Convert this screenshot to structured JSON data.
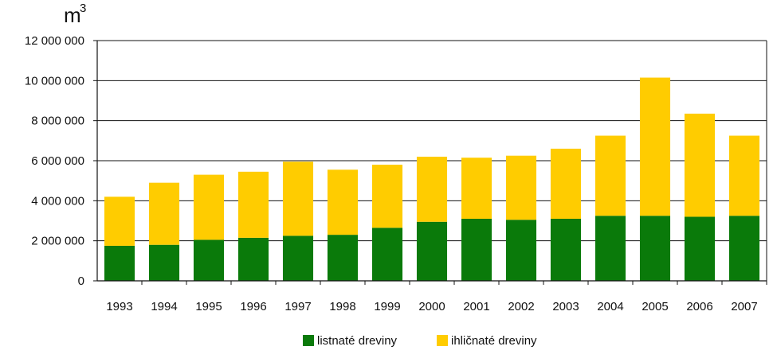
{
  "chart_data": {
    "type": "bar",
    "stacked": true,
    "title": "",
    "ylabel": "m",
    "ylabel_superscript": "3",
    "xlabel": "",
    "ylim": [
      0,
      12000000
    ],
    "yticks": [
      0,
      2000000,
      4000000,
      6000000,
      8000000,
      10000000,
      12000000
    ],
    "ytick_labels": [
      "0",
      "2 000 000",
      "4 000 000",
      "6 000 000",
      "8 000 000",
      "10 000 000",
      "12 000 000"
    ],
    "grid": true,
    "legend_position": "bottom",
    "categories": [
      "1993",
      "1994",
      "1995",
      "1996",
      "1997",
      "1998",
      "1999",
      "2000",
      "2001",
      "2002",
      "2003",
      "2004",
      "2005",
      "2006",
      "2007"
    ],
    "series": [
      {
        "name": "listnaté dreviny",
        "color": "#0a7a0a",
        "values": [
          1750000,
          1800000,
          2050000,
          2150000,
          2250000,
          2300000,
          2650000,
          2950000,
          3100000,
          3050000,
          3100000,
          3250000,
          3250000,
          3200000,
          3250000
        ]
      },
      {
        "name": "ihličnaté dreviny",
        "color": "#ffcc00",
        "values": [
          2450000,
          3100000,
          3250000,
          3300000,
          3700000,
          3250000,
          3150000,
          3250000,
          3050000,
          3200000,
          3500000,
          4000000,
          6900000,
          5150000,
          4000000
        ]
      }
    ]
  }
}
